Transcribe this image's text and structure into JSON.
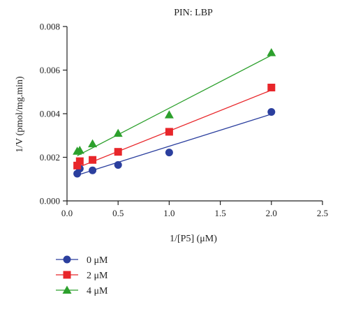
{
  "chart_data": {
    "type": "scatter",
    "title": "PIN: LBP",
    "xlabel": "1/[P5] (μM)",
    "ylabel": "1/V (pmol/mg.min)",
    "xlim": [
      0,
      2.5
    ],
    "ylim": [
      0,
      0.008
    ],
    "xticks": [
      0,
      0.5,
      1,
      1.5,
      2,
      2.5
    ],
    "xtick_labels": [
      "0.0",
      "0.5",
      "1.0",
      "1.5",
      "2.0",
      "2.5"
    ],
    "yticks": [
      0,
      0.002,
      0.004,
      0.006,
      0.008
    ],
    "ytick_labels": [
      "0.000",
      "0.002",
      "0.004",
      "0.006",
      "0.008"
    ],
    "grid": false,
    "legend_position": "bottom-left",
    "series": [
      {
        "name": "0 μM",
        "color": "#2b3f9e",
        "marker": "circle",
        "x": [
          0.1,
          0.125,
          0.25,
          0.5,
          1.0,
          2.0
        ],
        "y": [
          0.00125,
          0.00148,
          0.0014,
          0.00165,
          0.00222,
          0.00408
        ],
        "fit": [
          [
            0.1,
            0.00118
          ],
          [
            2.0,
            0.00398
          ]
        ]
      },
      {
        "name": "2 μM",
        "color": "#e8262a",
        "marker": "square",
        "x": [
          0.1,
          0.125,
          0.25,
          0.5,
          1.0,
          2.0
        ],
        "y": [
          0.00162,
          0.00182,
          0.00188,
          0.00225,
          0.00317,
          0.0052
        ],
        "fit": [
          [
            0.1,
            0.00152
          ],
          [
            2.0,
            0.00508
          ]
        ]
      },
      {
        "name": "4 μM",
        "color": "#2ca02c",
        "marker": "triangle",
        "x": [
          0.1,
          0.125,
          0.25,
          0.5,
          1.0,
          2.0
        ],
        "y": [
          0.00228,
          0.00232,
          0.00262,
          0.0031,
          0.00395,
          0.0068
        ],
        "fit": [
          [
            0.1,
            0.00207
          ],
          [
            2.0,
            0.00668
          ]
        ]
      }
    ]
  }
}
